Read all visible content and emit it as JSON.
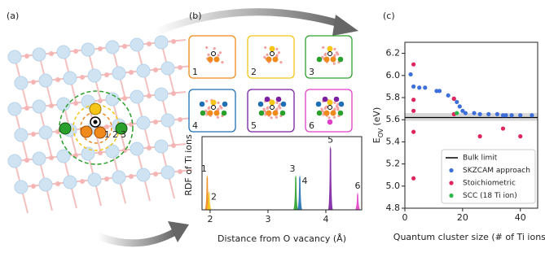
{
  "panel_labels": [
    "(a)",
    "(b)",
    "(c)"
  ],
  "structure_labels": [
    "1",
    "2",
    "3"
  ],
  "cluster_labels": [
    "1",
    "2",
    "3",
    "4",
    "5",
    "6"
  ],
  "chart_data": [
    {
      "type": "peaks",
      "xlabel": "Distance from O vacancy (Å)",
      "ylabel": "RDF of Ti ions",
      "xlim": [
        1.86,
        4.62
      ],
      "ylim": [
        0,
        1.15
      ],
      "xticks": [
        2,
        3,
        4
      ],
      "series": [
        {
          "name": "1",
          "color": "#f08a1c",
          "x": [
            1.95
          ],
          "values": [
            0.55
          ]
        },
        {
          "name": "2",
          "color": "#f5c518",
          "x": [
            1.98
          ],
          "values": [
            0.3
          ]
        },
        {
          "name": "3",
          "color": "#2ca02c",
          "x": [
            3.48
          ],
          "values": [
            0.55
          ]
        },
        {
          "name": "4",
          "color": "#1f6fb4",
          "x": [
            3.55
          ],
          "values": [
            0.55
          ]
        },
        {
          "name": "5",
          "color": "#7a1fa2",
          "x": [
            4.08
          ],
          "values": [
            1.0
          ]
        },
        {
          "name": "6",
          "color": "#e040c8",
          "x": [
            4.55
          ],
          "values": [
            0.28
          ]
        }
      ]
    },
    {
      "type": "scatter",
      "xlabel": "Quantum cluster size (# of Ti ions)",
      "ylabel": "E",
      "ylabel_sub": "OV",
      "ylabel_unit": "(eV)",
      "xlim": [
        0,
        46
      ],
      "ylim": [
        4.8,
        6.3
      ],
      "xticks": [
        0,
        20,
        40
      ],
      "yticks": [
        4.8,
        {
          "value": 5,
          "label": "5.0"
        },
        5.2,
        5.4,
        5.6,
        5.8,
        {
          "value": 6,
          "label": "6.0"
        },
        6.2
      ],
      "legend": "lower right",
      "series": [
        {
          "name": "Bulk limit",
          "color": "#000000",
          "line": 5.62,
          "band": [
            5.59,
            5.66
          ]
        },
        {
          "name": "SKZCAM approach",
          "color": "#3f6fd8",
          "x": [
            2,
            3,
            5,
            7,
            11,
            12,
            15,
            17,
            18,
            19,
            20,
            21,
            24,
            26,
            29,
            32,
            34,
            35,
            37,
            40,
            44
          ],
          "values": [
            6.01,
            5.9,
            5.89,
            5.89,
            5.86,
            5.86,
            5.82,
            5.79,
            5.76,
            5.72,
            5.68,
            5.66,
            5.66,
            5.65,
            5.65,
            5.65,
            5.64,
            5.64,
            5.64,
            5.64,
            5.64
          ]
        },
        {
          "name": "Stoichiometric",
          "color": "#e0245e",
          "x": [
            3,
            3,
            3,
            3,
            3,
            17,
            17,
            26,
            34,
            40
          ],
          "values": [
            6.1,
            5.78,
            5.68,
            5.49,
            5.07,
            5.79,
            5.65,
            5.45,
            5.52,
            5.45
          ]
        },
        {
          "name": "SCC (18 Ti ion)",
          "color": "#2db84d",
          "x": [
            18
          ],
          "values": [
            5.66
          ]
        }
      ]
    }
  ]
}
